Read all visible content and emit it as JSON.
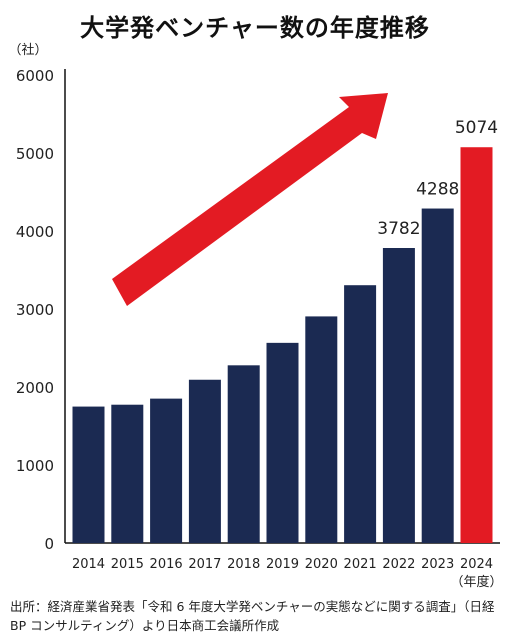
{
  "title": "大学発ベンチャー数の年度推移",
  "source_note": "出所：経済産業省発表「令和 6 年度大学発ベンチャーの実態などに関する調査」（日経 BP コンサルティング）より日本商工会議所作成",
  "colors": {
    "bar": "#1b2a52",
    "highlight": "#e31b23",
    "arrow": "#e31b23"
  },
  "chart_data": {
    "type": "bar",
    "ylabel": "（社）",
    "xlabel": "（年度）",
    "ylim": [
      0,
      6000
    ],
    "yticks": [
      0,
      1000,
      2000,
      3000,
      4000,
      5000,
      6000
    ],
    "grid": false,
    "categories": [
      "2014",
      "2015",
      "2016",
      "2017",
      "2018",
      "2019",
      "2020",
      "2021",
      "2022",
      "2023",
      "2024"
    ],
    "values": [
      1749,
      1773,
      1851,
      2093,
      2278,
      2566,
      2905,
      3305,
      3782,
      4288,
      5074
    ],
    "data_labels": {
      "2022": "3782",
      "2023": "4288",
      "2024": "5074"
    },
    "highlight_category": "2024",
    "annotation": "upward-trend-arrow"
  }
}
